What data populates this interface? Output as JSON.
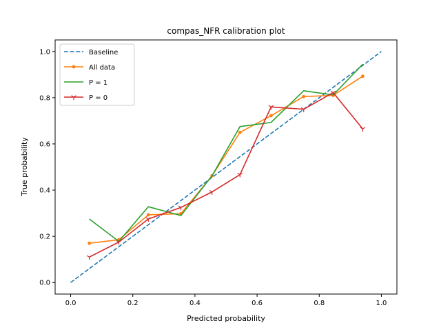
{
  "chart_data": {
    "type": "line",
    "title": "compas_NFR calibration plot",
    "xlabel": "Predicted probability",
    "ylabel": "True probability",
    "xlim": [
      -0.05,
      1.05
    ],
    "ylim": [
      -0.05,
      1.05
    ],
    "xticks": [
      "0.0",
      "0.2",
      "0.4",
      "0.6",
      "0.8",
      "1.0"
    ],
    "yticks": [
      "0.0",
      "0.2",
      "0.4",
      "0.6",
      "0.8",
      "1.0"
    ],
    "grid": false,
    "legend_position": "top-left",
    "series": [
      {
        "name": "Baseline",
        "color": "#1f77b4",
        "style": "dashed",
        "marker": "none",
        "x": [
          0.0,
          1.0
        ],
        "y": [
          0.0,
          1.0
        ]
      },
      {
        "name": "All data",
        "color": "#ff7f0e",
        "style": "solid",
        "marker": "dot",
        "x": [
          0.06,
          0.155,
          0.25,
          0.355,
          0.455,
          0.545,
          0.645,
          0.75,
          0.845,
          0.94
        ],
        "y": [
          0.17,
          0.185,
          0.293,
          0.298,
          0.462,
          0.65,
          0.722,
          0.805,
          0.81,
          0.893
        ]
      },
      {
        "name": "P = 1",
        "color": "#2ca02c",
        "style": "solid",
        "marker": "none",
        "x": [
          0.06,
          0.155,
          0.25,
          0.355,
          0.455,
          0.545,
          0.645,
          0.75,
          0.845,
          0.94
        ],
        "y": [
          0.275,
          0.178,
          0.328,
          0.29,
          0.462,
          0.675,
          0.693,
          0.83,
          0.812,
          0.945
        ]
      },
      {
        "name": "P = 0",
        "color": "#d62728",
        "style": "solid",
        "marker": "tri",
        "x": [
          0.06,
          0.155,
          0.25,
          0.355,
          0.455,
          0.545,
          0.645,
          0.75,
          0.845,
          0.94
        ],
        "y": [
          0.11,
          0.175,
          0.275,
          0.325,
          0.392,
          0.467,
          0.76,
          0.75,
          0.822,
          0.665
        ]
      }
    ]
  }
}
